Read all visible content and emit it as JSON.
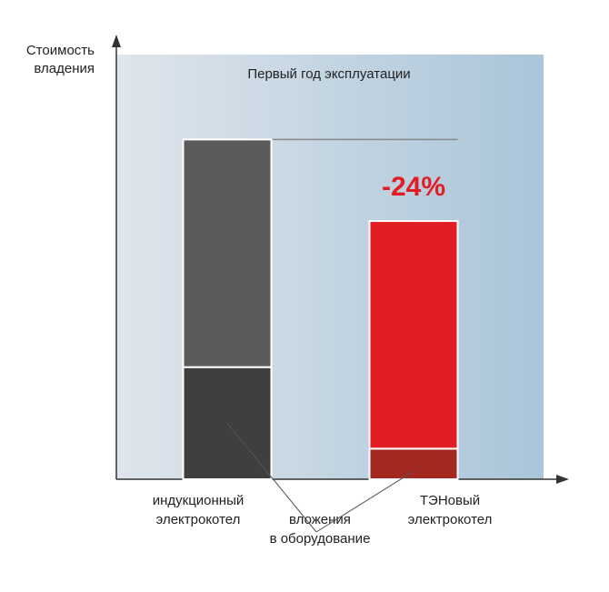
{
  "chart_data": {
    "type": "stacked-bar",
    "ylabel": [
      "Стоимость",
      "владения"
    ],
    "subtitle": "Первый год эксплуатации",
    "annotation": "-24%",
    "categories": [
      [
        "индукционный",
        "электрокотел"
      ],
      [
        "ТЭНовый",
        "электрокотел"
      ]
    ],
    "series": [
      {
        "name": [
          "вложения",
          "в оборудование"
        ],
        "colors": [
          "#3f3f3f",
          "#a3281f"
        ],
        "values": [
          33,
          9
        ]
      },
      {
        "colors": [
          "#5b5b5b",
          "#e21d24"
        ],
        "values": [
          67,
          67
        ]
      }
    ],
    "ylim": [
      0,
      125
    ]
  }
}
